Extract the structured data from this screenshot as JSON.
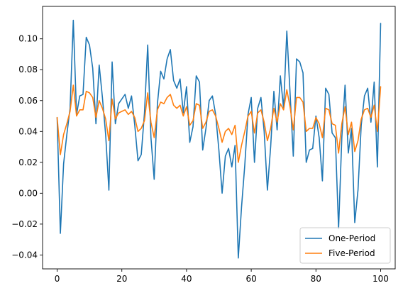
{
  "chart_data": {
    "type": "line",
    "xlim": [
      -4.5,
      104.5
    ],
    "ylim": [
      -0.049,
      0.121
    ],
    "xticks": [
      0,
      20,
      40,
      60,
      80,
      100
    ],
    "yticks": [
      -0.04,
      -0.02,
      0.0,
      0.02,
      0.04,
      0.06,
      0.08,
      0.1
    ],
    "xtick_labels": [
      "0",
      "20",
      "40",
      "60",
      "80",
      "100"
    ],
    "ytick_labels": [
      "−0.04",
      "−0.02",
      "0.00",
      "0.02",
      "0.04",
      "0.06",
      "0.08",
      "0.10"
    ],
    "legend_position": "lower-right",
    "grid": false,
    "series": [
      {
        "name": "One-Period",
        "color": "#1f77b4",
        "values": [
          0.049,
          -0.026,
          0.019,
          0.038,
          0.055,
          0.112,
          0.051,
          0.063,
          0.064,
          0.101,
          0.096,
          0.081,
          0.045,
          0.083,
          0.062,
          0.038,
          0.002,
          0.085,
          0.045,
          0.058,
          0.061,
          0.064,
          0.055,
          0.063,
          0.044,
          0.021,
          0.025,
          0.052,
          0.096,
          0.036,
          0.009,
          0.058,
          0.079,
          0.074,
          0.087,
          0.093,
          0.073,
          0.068,
          0.074,
          0.052,
          0.069,
          0.033,
          0.043,
          0.076,
          0.072,
          0.028,
          0.042,
          0.06,
          0.063,
          0.051,
          0.028,
          0.0,
          0.024,
          0.029,
          0.017,
          0.031,
          -0.042,
          -0.009,
          0.018,
          0.051,
          0.062,
          0.02,
          0.055,
          0.062,
          0.04,
          0.002,
          0.03,
          0.066,
          0.041,
          0.076,
          0.055,
          0.105,
          0.065,
          0.024,
          0.087,
          0.085,
          0.078,
          0.02,
          0.028,
          0.029,
          0.05,
          0.036,
          0.008,
          0.068,
          0.064,
          0.039,
          0.036,
          -0.023,
          0.036,
          0.07,
          0.026,
          0.042,
          -0.019,
          0.002,
          0.044,
          0.063,
          0.068,
          0.046,
          0.072,
          0.017,
          0.11
        ]
      },
      {
        "name": "Five-Period",
        "color": "#ff7f0e",
        "values": [
          0.049,
          0.025,
          0.038,
          0.045,
          0.053,
          0.07,
          0.05,
          0.054,
          0.054,
          0.066,
          0.065,
          0.062,
          0.049,
          0.06,
          0.055,
          0.048,
          0.034,
          0.061,
          0.048,
          0.052,
          0.053,
          0.054,
          0.051,
          0.053,
          0.049,
          0.04,
          0.042,
          0.047,
          0.065,
          0.046,
          0.036,
          0.054,
          0.059,
          0.058,
          0.062,
          0.064,
          0.057,
          0.055,
          0.057,
          0.05,
          0.056,
          0.044,
          0.047,
          0.058,
          0.057,
          0.042,
          0.046,
          0.053,
          0.054,
          0.05,
          0.042,
          0.033,
          0.04,
          0.042,
          0.038,
          0.044,
          0.02,
          0.031,
          0.04,
          0.05,
          0.053,
          0.039,
          0.052,
          0.054,
          0.046,
          0.034,
          0.042,
          0.055,
          0.046,
          0.058,
          0.054,
          0.067,
          0.056,
          0.041,
          0.062,
          0.062,
          0.059,
          0.04,
          0.042,
          0.042,
          0.049,
          0.045,
          0.036,
          0.055,
          0.054,
          0.045,
          0.044,
          0.026,
          0.045,
          0.056,
          0.038,
          0.046,
          0.027,
          0.034,
          0.048,
          0.054,
          0.055,
          0.049,
          0.057,
          0.04,
          0.069
        ]
      }
    ]
  }
}
